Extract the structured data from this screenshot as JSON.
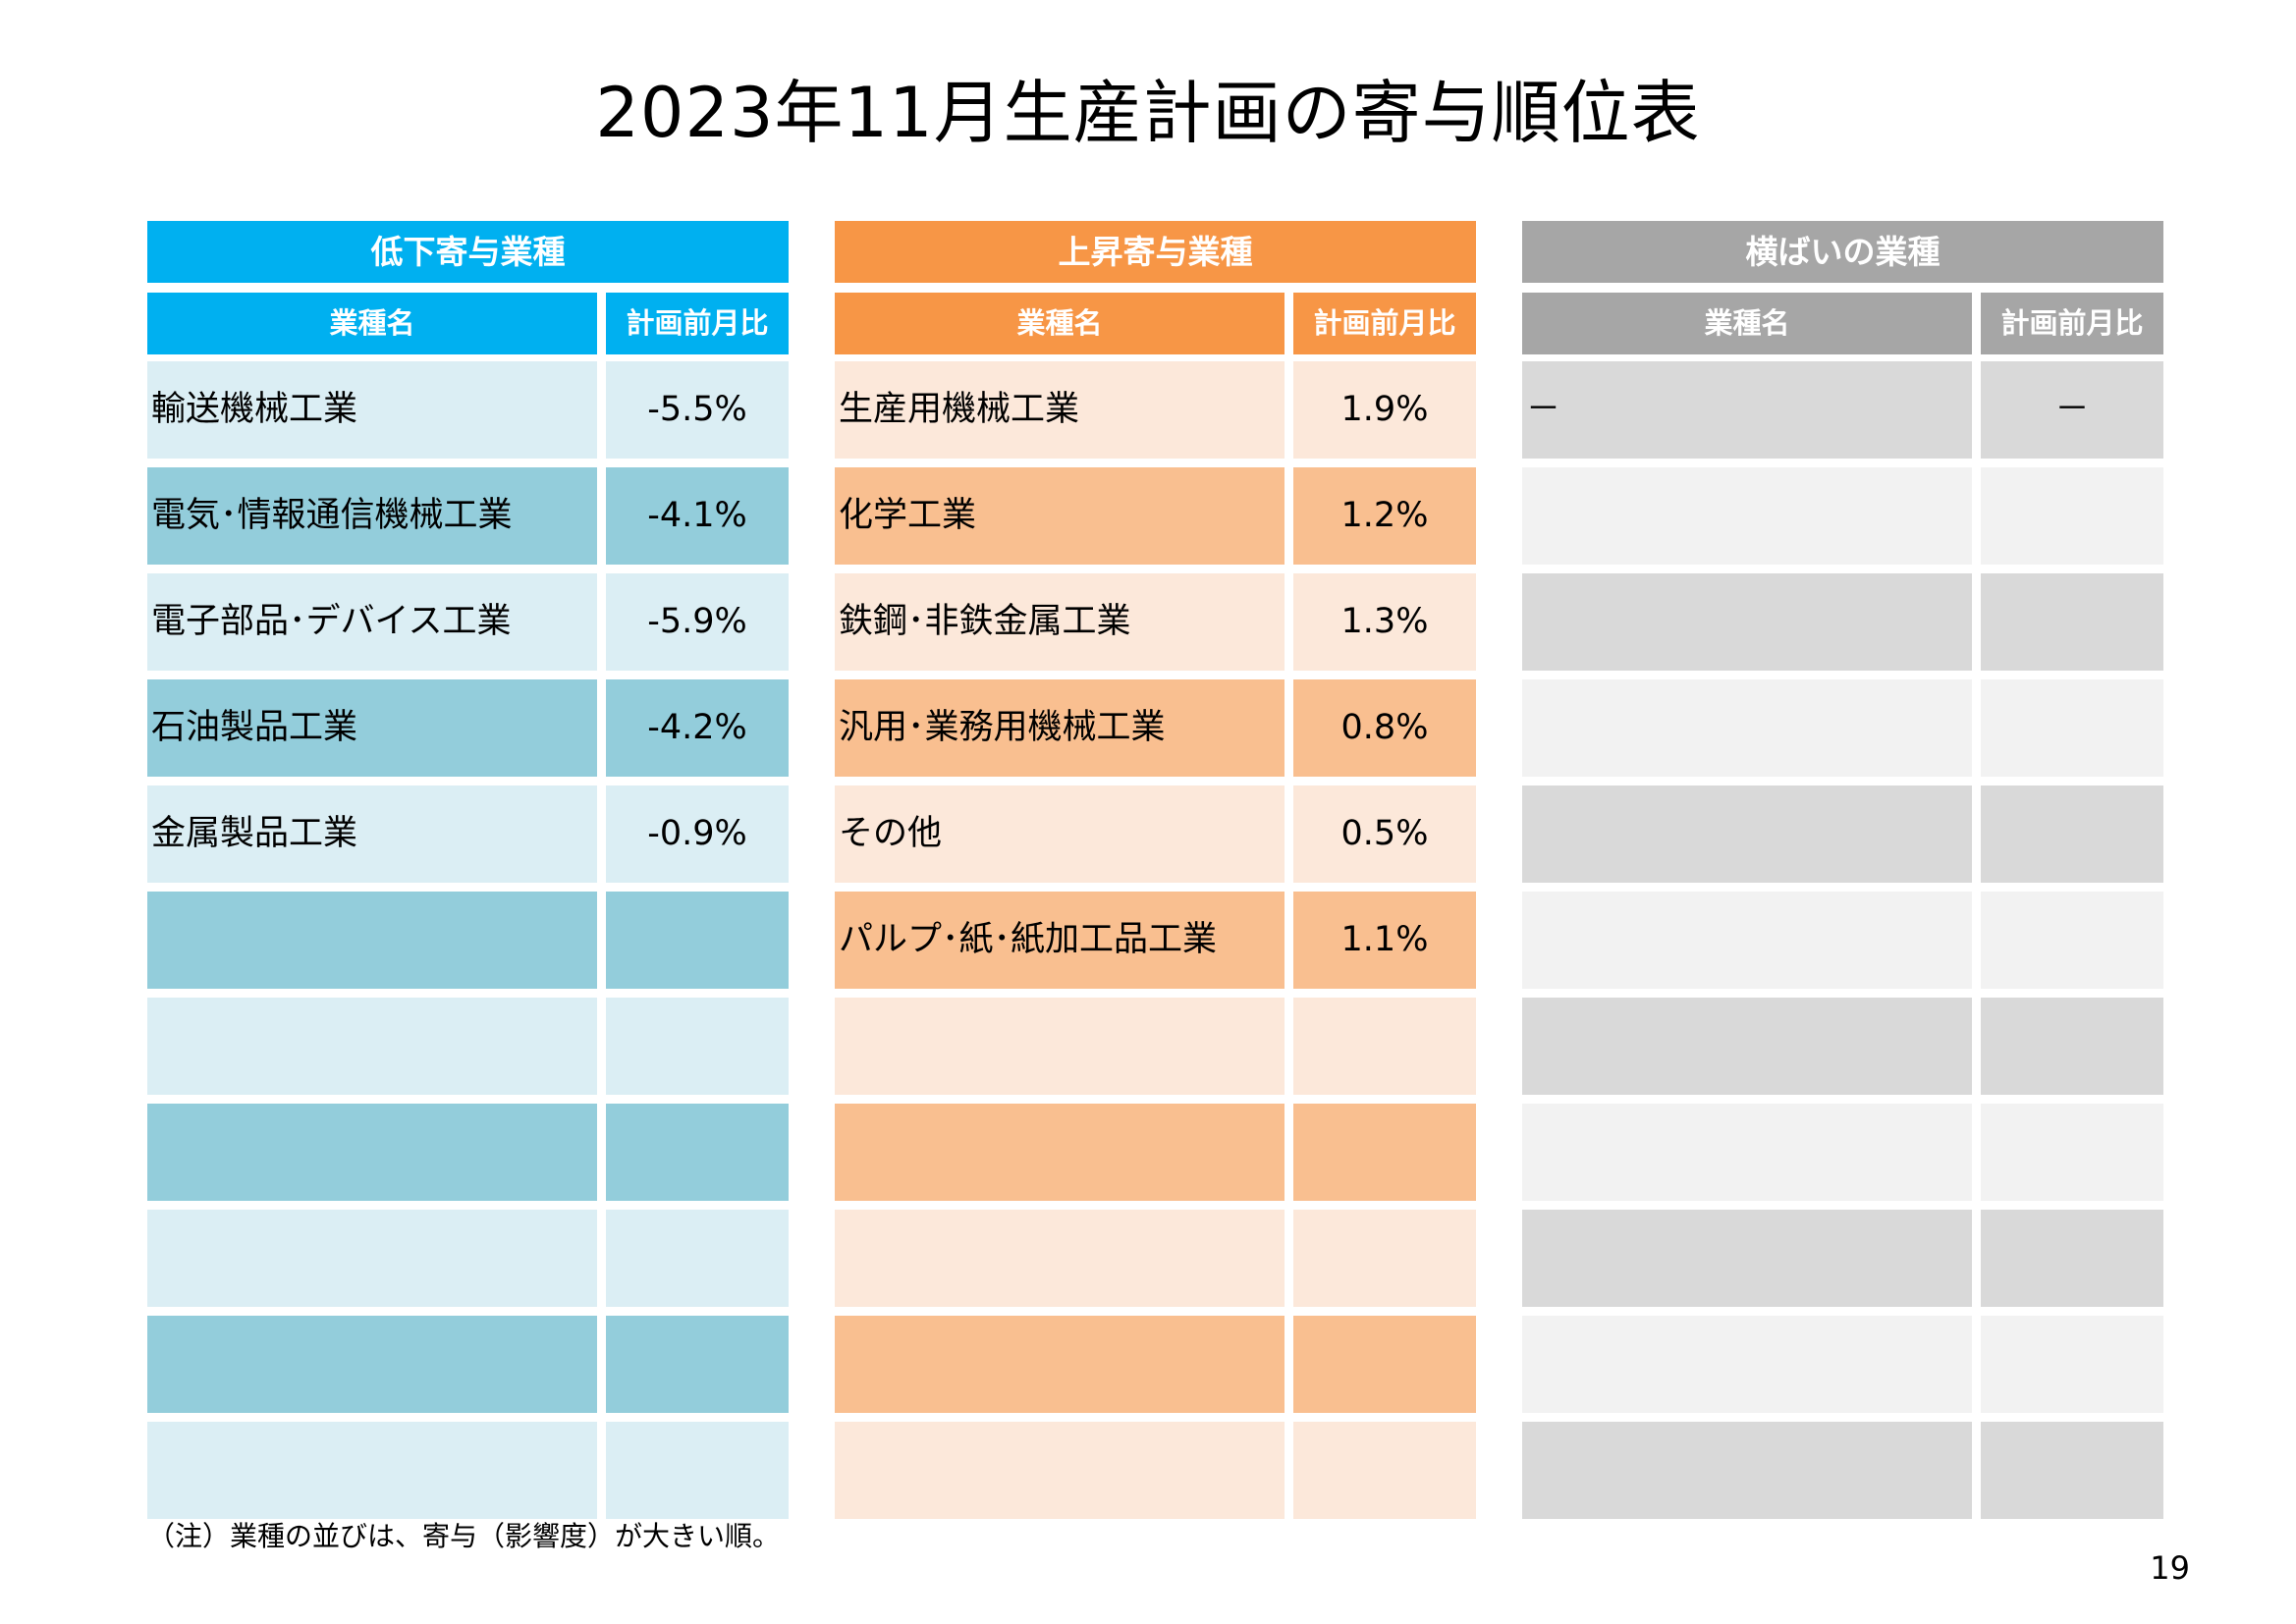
{
  "title": "2023年11月生産計画の寄与順位表",
  "panels": [
    {
      "key": "down",
      "header": "低下寄与業種",
      "col_name": "業種名",
      "col_value": "計画前月比",
      "colors": {
        "header": "#00b0f0",
        "row_light": "#dbeef4",
        "row_dark": "#93cddb"
      },
      "rows": [
        {
          "name": "輸送機械工業",
          "value": "-5.5%"
        },
        {
          "name": "電気･情報通信機械工業",
          "value": "-4.1%"
        },
        {
          "name": "電子部品･デバイス工業",
          "value": "-5.9%"
        },
        {
          "name": "石油製品工業",
          "value": "-4.2%"
        },
        {
          "name": "金属製品工業",
          "value": "-0.9%"
        },
        {
          "name": "",
          "value": ""
        },
        {
          "name": "",
          "value": ""
        },
        {
          "name": "",
          "value": ""
        },
        {
          "name": "",
          "value": ""
        },
        {
          "name": "",
          "value": ""
        },
        {
          "name": "",
          "value": ""
        }
      ]
    },
    {
      "key": "up",
      "header": "上昇寄与業種",
      "col_name": "業種名",
      "col_value": "計画前月比",
      "colors": {
        "header": "#f79646",
        "row_light": "#fce8da",
        "row_dark": "#f9bf90"
      },
      "rows": [
        {
          "name": "生産用機械工業",
          "value": "1.9%"
        },
        {
          "name": "化学工業",
          "value": "1.2%"
        },
        {
          "name": "鉄鋼･非鉄金属工業",
          "value": "1.3%"
        },
        {
          "name": "汎用･業務用機械工業",
          "value": "0.8%"
        },
        {
          "name": "その他",
          "value": "0.5%"
        },
        {
          "name": "パルプ･紙･紙加工品工業",
          "value": "1.1%"
        },
        {
          "name": "",
          "value": ""
        },
        {
          "name": "",
          "value": ""
        },
        {
          "name": "",
          "value": ""
        },
        {
          "name": "",
          "value": ""
        },
        {
          "name": "",
          "value": ""
        }
      ]
    },
    {
      "key": "flat",
      "header": "横ばいの業種",
      "col_name": "業種名",
      "col_value": "計画前月比",
      "colors": {
        "header": "#a6a6a6",
        "row_light": "#d9d9d9",
        "row_dark": "#f2f2f2"
      },
      "rows": [
        {
          "name": "－",
          "value": "－"
        },
        {
          "name": "",
          "value": ""
        },
        {
          "name": "",
          "value": ""
        },
        {
          "name": "",
          "value": ""
        },
        {
          "name": "",
          "value": ""
        },
        {
          "name": "",
          "value": ""
        },
        {
          "name": "",
          "value": ""
        },
        {
          "name": "",
          "value": ""
        },
        {
          "name": "",
          "value": ""
        },
        {
          "name": "",
          "value": ""
        },
        {
          "name": "",
          "value": ""
        }
      ]
    }
  ],
  "note": "（注）業種の並びは、寄与（影響度）が大きい順。",
  "page_number": "19"
}
